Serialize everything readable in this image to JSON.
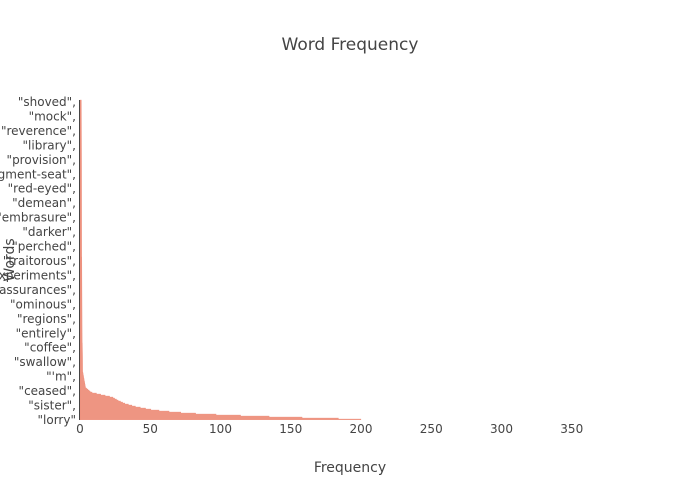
{
  "chart_data": {
    "type": "bar",
    "orientation": "horizontal",
    "title": "Word Frequency",
    "xlabel": "Frequency",
    "ylabel": "Words",
    "xlim": [
      0,
      400
    ],
    "x_ticks": [
      0,
      50,
      100,
      150,
      200,
      250,
      300,
      350
    ],
    "y_tick_labels": [
      "\"lorry\"",
      "\"sister\"",
      "\"ceased\"",
      "\"'m\"",
      "\"swallow\"",
      "\"coffee\"",
      "\"entirely\"",
      "\"regions\"",
      "\"ominous\"",
      "\"assurances\"",
      "\"experiments\"",
      "\"traitorous\"",
      "\"perched\"",
      "\"darker\"",
      "\"embrasure\"",
      "\"demean\"",
      "\"red-eyed\"",
      "\"judgment-seat\"",
      "\"provision\"",
      "\"library\"",
      "\"reverence\"",
      "\"mock\"",
      "\"shoved\""
    ],
    "bar_color": "#f4a896",
    "bar_edge_color": "#e05a43",
    "grid": false,
    "legend": "none",
    "profile": [
      {
        "rank_fraction": 0.0,
        "value": 200
      },
      {
        "rank_fraction": 0.003,
        "value": 185
      },
      {
        "rank_fraction": 0.006,
        "value": 160
      },
      {
        "rank_fraction": 0.01,
        "value": 130
      },
      {
        "rank_fraction": 0.014,
        "value": 105
      },
      {
        "rank_fraction": 0.018,
        "value": 85
      },
      {
        "rank_fraction": 0.023,
        "value": 68
      },
      {
        "rank_fraction": 0.03,
        "value": 52
      },
      {
        "rank_fraction": 0.04,
        "value": 40
      },
      {
        "rank_fraction": 0.05,
        "value": 32
      },
      {
        "rank_fraction": 0.06,
        "value": 27
      },
      {
        "rank_fraction": 0.07,
        "value": 23
      },
      {
        "rank_fraction": 0.085,
        "value": 8
      },
      {
        "rank_fraction": 0.1,
        "value": 4
      },
      {
        "rank_fraction": 0.15,
        "value": 2
      },
      {
        "rank_fraction": 0.3,
        "value": 1.5
      },
      {
        "rank_fraction": 1.0,
        "value": 1
      }
    ]
  }
}
